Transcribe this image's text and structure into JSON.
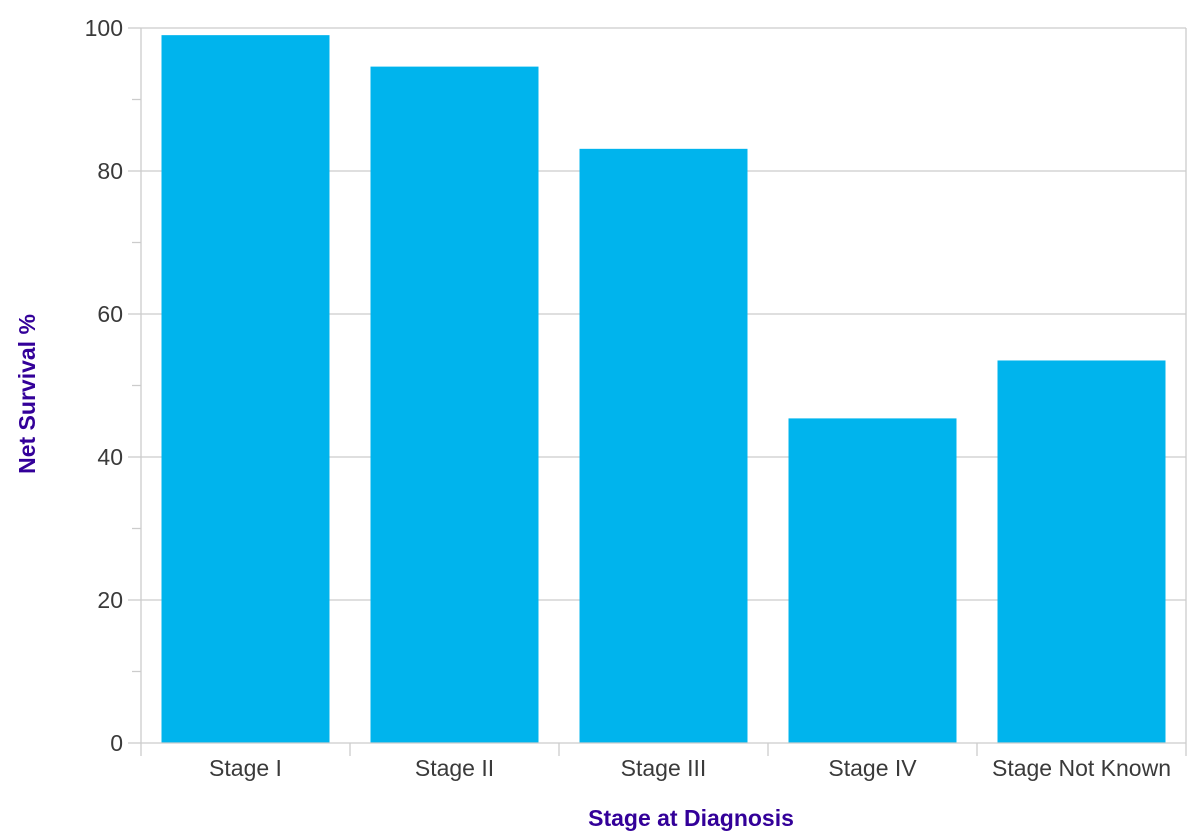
{
  "chart_data": {
    "type": "bar",
    "categories": [
      "Stage I",
      "Stage II",
      "Stage III",
      "Stage IV",
      "Stage Not Known"
    ],
    "values": [
      99.0,
      94.6,
      83.1,
      45.4,
      53.5
    ],
    "xlabel": "Stage at Diagnosis",
    "ylabel": "Net Survival %",
    "ylim": [
      0,
      100
    ],
    "yticks": [
      0,
      20,
      40,
      60,
      80,
      100
    ],
    "grid": true,
    "colors": {
      "bar": "#00B4ED",
      "axis_title": "#330099",
      "grid": "#cccccc",
      "tick_label": "#3a3a3a"
    }
  }
}
